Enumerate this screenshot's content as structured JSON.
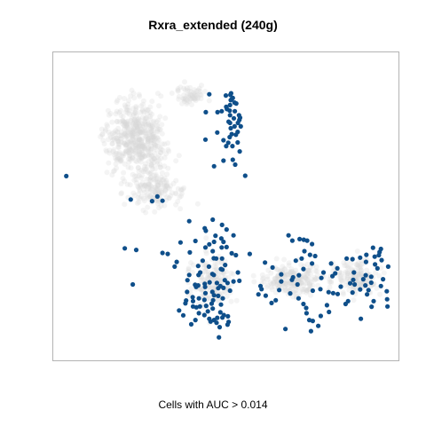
{
  "chart_data": {
    "type": "scatter",
    "title": "Rxra_extended (240g)",
    "xlabel": "Cells with AUC > 0.014",
    "ylabel": "",
    "xlim": [
      0,
      100
    ],
    "ylim": [
      0,
      100
    ],
    "grid": false,
    "colors": {
      "highlight": "#0f4f8a",
      "background": "#d9d9d9",
      "frame": "#b3b3b3"
    },
    "series": [
      {
        "values_note": "",
        "points": [
          [
            45.2,
            86.3
          ],
          [
            51.5,
            86.6
          ],
          [
            51.3,
            86.1
          ],
          [
            50.0,
            85.9
          ],
          [
            52.0,
            85.1
          ],
          [
            51.7,
            84.7
          ],
          [
            51.4,
            84.4
          ],
          [
            52.5,
            83.6
          ],
          [
            53.0,
            83.3
          ],
          [
            51.2,
            82.8
          ],
          [
            50.1,
            82.2
          ],
          [
            50.3,
            81.5
          ],
          [
            51.1,
            81.0
          ],
          [
            44.2,
            80.5
          ],
          [
            47.6,
            80.5
          ],
          [
            48.8,
            80.8
          ],
          [
            52.6,
            80.8
          ],
          [
            51.2,
            79.5
          ],
          [
            53.8,
            79.5
          ],
          [
            54.1,
            78.7
          ],
          [
            52.3,
            78.5
          ],
          [
            53.9,
            78.0
          ],
          [
            50.8,
            77.4
          ],
          [
            51.2,
            77.0
          ],
          [
            53.5,
            77.0
          ],
          [
            52.5,
            75.9
          ],
          [
            54.3,
            75.9
          ],
          [
            51.4,
            75.3
          ],
          [
            53.4,
            74.1
          ],
          [
            52.9,
            73.2
          ],
          [
            51.1,
            72.4
          ],
          [
            44.1,
            71.6
          ],
          [
            49.3,
            71.4
          ],
          [
            51.7,
            73.4
          ],
          [
            47.5,
            73.9
          ],
          [
            50.7,
            70.6
          ],
          [
            50.1,
            69.5
          ],
          [
            51.9,
            69.5
          ],
          [
            53.4,
            70.7
          ],
          [
            49.3,
            64.8
          ],
          [
            52.0,
            65.1
          ],
          [
            54.0,
            67.8
          ],
          [
            46.6,
            63.0
          ],
          [
            52.7,
            63.5
          ],
          [
            55.6,
            59.9
          ],
          [
            3.9,
            59.8
          ],
          [
            22.5,
            52.2
          ],
          [
            28.7,
            51.7
          ],
          [
            31.7,
            51.8
          ],
          [
            39.4,
            45.2
          ],
          [
            46.2,
            45.7
          ],
          [
            43.9,
            42.9
          ],
          [
            48.9,
            44.0
          ],
          [
            50.2,
            42.5
          ],
          [
            47.0,
            40.5
          ],
          [
            52.2,
            40.6
          ],
          [
            49.3,
            38.5
          ],
          [
            41.2,
            38.8
          ],
          [
            44.1,
            36.7
          ],
          [
            39.6,
            35.1
          ],
          [
            46.2,
            35.5
          ],
          [
            50.2,
            36.8
          ],
          [
            46.5,
            33.2
          ],
          [
            43.3,
            32.4
          ],
          [
            35.2,
            30.5
          ],
          [
            45.1,
            30.5
          ],
          [
            42.6,
            28.6
          ],
          [
            53.5,
            28.6
          ],
          [
            49.7,
            26.1
          ],
          [
            38.9,
            26.1
          ],
          [
            52.2,
            25.7
          ],
          [
            47.4,
            25.2
          ],
          [
            42.0,
            24.4
          ],
          [
            23.1,
            24.7
          ],
          [
            60.0,
            24.2
          ],
          [
            48.4,
            24.2
          ],
          [
            49.3,
            23.6
          ],
          [
            44.1,
            21.9
          ],
          [
            51.2,
            22.7
          ],
          [
            38.8,
            22.3
          ],
          [
            40.4,
            20.6
          ],
          [
            47.8,
            21.0
          ],
          [
            46.3,
            19.6
          ],
          [
            38.5,
            19.5
          ],
          [
            40.5,
            19.3
          ],
          [
            45.9,
            18.5
          ],
          [
            41.5,
            17.3
          ],
          [
            42.5,
            17.6
          ],
          [
            44.3,
            17.8
          ],
          [
            48.6,
            18.2
          ],
          [
            46.2,
            16.9
          ],
          [
            48.4,
            15.7
          ],
          [
            43.8,
            14.8
          ],
          [
            49.0,
            14.0
          ],
          [
            49.4,
            14.8
          ],
          [
            46.6,
            13.2
          ],
          [
            47.5,
            13.9
          ],
          [
            45.6,
            12.7
          ],
          [
            47.3,
            12.3
          ],
          [
            50.8,
            12.6
          ],
          [
            48.2,
            10.9
          ],
          [
            50.5,
            11.7
          ],
          [
            37.7,
            14.7
          ],
          [
            38.3,
            18.6
          ],
          [
            48.0,
            7.6
          ],
          [
            36.5,
            16.3
          ],
          [
            53.9,
            25.9
          ],
          [
            44.0,
            23.9
          ],
          [
            41.1,
            24.6
          ],
          [
            49.8,
            31.0
          ],
          [
            56.9,
            34.6
          ],
          [
            48.9,
            33.1
          ],
          [
            52.9,
            34.2
          ],
          [
            46.1,
            28.1
          ],
          [
            39.4,
            27.8
          ],
          [
            60.3,
            23.2
          ],
          [
            51.7,
            34.8
          ],
          [
            49.0,
            29.5
          ],
          [
            48.7,
            39.6
          ],
          [
            46.6,
            38.5
          ],
          [
            48.8,
            36.7
          ],
          [
            42.0,
            30.7
          ],
          [
            40.5,
            17.6
          ],
          [
            50.6,
            14.4
          ],
          [
            42.2,
            20.2
          ],
          [
            46.5,
            27.8
          ],
          [
            68.1,
            40.6
          ],
          [
            69.2,
            38.9
          ],
          [
            71.3,
            39.4
          ],
          [
            72.5,
            39.2
          ],
          [
            73.5,
            38.9
          ],
          [
            74.9,
            37.8
          ],
          [
            72.7,
            35.5
          ],
          [
            74.3,
            34.3
          ],
          [
            71.9,
            33.1
          ],
          [
            70.2,
            32.4
          ],
          [
            61.3,
            31.8
          ],
          [
            63.5,
            30.2
          ],
          [
            66.0,
            28.0
          ],
          [
            71.1,
            27.7
          ],
          [
            74.9,
            31.5
          ],
          [
            69.1,
            26.2
          ],
          [
            66.0,
            25.7
          ],
          [
            59.4,
            21.5
          ],
          [
            61.5,
            21.1
          ],
          [
            63.2,
            18.7
          ],
          [
            64.4,
            19.6
          ],
          [
            68.6,
            21.8
          ],
          [
            71.0,
            20.2
          ],
          [
            72.4,
            18.4
          ],
          [
            73.2,
            17.1
          ],
          [
            75.1,
            22.7
          ],
          [
            73.3,
            15.4
          ],
          [
            74.6,
            9.6
          ],
          [
            76.7,
            11.3
          ],
          [
            77.4,
            14.5
          ],
          [
            79.8,
            15.8
          ],
          [
            79.2,
            18.0
          ],
          [
            79.7,
            22.2
          ],
          [
            81.0,
            21.9
          ],
          [
            82.3,
            21.6
          ],
          [
            84.6,
            18.4
          ],
          [
            86.6,
            22.1
          ],
          [
            87.2,
            24.7
          ],
          [
            86.8,
            26.2
          ],
          [
            89.7,
            26.4
          ],
          [
            88.8,
            23.1
          ],
          [
            90.8,
            21.5
          ],
          [
            90.3,
            24.4
          ],
          [
            92.0,
            25.3
          ],
          [
            94.8,
            24.2
          ],
          [
            96.6,
            19.9
          ],
          [
            96.7,
            17.6
          ],
          [
            92.7,
            19.3
          ],
          [
            90.4,
            27.7
          ],
          [
            93.1,
            31.2
          ],
          [
            95.0,
            32.6
          ],
          [
            96.9,
            30.5
          ],
          [
            94.4,
            35.2
          ],
          [
            93.0,
            33.7
          ],
          [
            92.5,
            36.6
          ],
          [
            94.2,
            34.2
          ],
          [
            90.6,
            34.3
          ],
          [
            92.0,
            27.2
          ],
          [
            84.9,
            33.1
          ],
          [
            86.6,
            32.9
          ],
          [
            82.2,
            29.9
          ],
          [
            85.9,
            25.1
          ],
          [
            80.8,
            27.4
          ],
          [
            83.2,
            24.0
          ],
          [
            78.2,
            28.6
          ],
          [
            80.4,
            31.5
          ],
          [
            75.8,
            33.9
          ],
          [
            77.3,
            23.2
          ],
          [
            75.1,
            12.9
          ],
          [
            67.2,
            10.3
          ],
          [
            74.1,
            13.2
          ],
          [
            95.4,
            26.4
          ],
          [
            96.5,
            22.5
          ],
          [
            91.2,
            22.9
          ],
          [
            89.0,
            13.6
          ],
          [
            87.0,
            28.6
          ],
          [
            88.8,
            33.4
          ],
          [
            94.8,
            36.2
          ],
          [
            30.2,
            53.2
          ],
          [
            20.8,
            36.4
          ],
          [
            24.1,
            35.9
          ],
          [
            31.7,
            34.9
          ],
          [
            35.8,
            32.0
          ],
          [
            33.2,
            34.6
          ],
          [
            36.9,
            38.3
          ],
          [
            44.2,
            42.1
          ],
          [
            45.2,
            37.7
          ],
          [
            48.6,
            29.7
          ],
          [
            47.2,
            33.1
          ],
          [
            45.2,
            13.6
          ],
          [
            42.1,
            27.8
          ],
          [
            41.2,
            13.2
          ],
          [
            44.8,
            16.0
          ],
          [
            49.1,
            20.2
          ],
          [
            42.2,
            15.4
          ],
          [
            46.6,
            21.2
          ],
          [
            43.8,
            19.7
          ],
          [
            46.1,
            22.3
          ],
          [
            40.0,
            11.8
          ],
          [
            47.8,
            23.5
          ],
          [
            45.3,
            25.4
          ],
          [
            41.4,
            23.9
          ],
          [
            50.5,
            25.2
          ],
          [
            43.9,
            24.9
          ],
          [
            81.6,
            28.3
          ],
          [
            77.6,
            26.8
          ],
          [
            70.7,
            24.7
          ],
          [
            65.4,
            22.9
          ],
          [
            69.4,
            27.0
          ],
          [
            72.4,
            29.7
          ],
          [
            90.5,
            32.0
          ],
          [
            93.8,
            29.9
          ],
          [
            92.1,
            17.5
          ],
          [
            85.3,
            19.3
          ]
        ]
      }
    ]
  }
}
